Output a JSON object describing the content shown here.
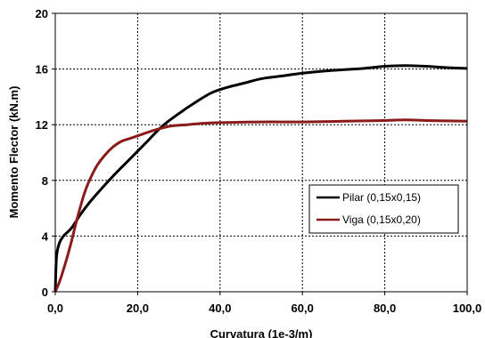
{
  "chart_data": {
    "type": "line",
    "xlabel": "Curvatura (1e-3/m)",
    "ylabel": "Momento Flector (kN.m)",
    "xlim": [
      0,
      100
    ],
    "ylim": [
      0,
      20
    ],
    "x_ticks": [
      "0,0",
      "20,0",
      "40,0",
      "60,0",
      "80,0",
      "100,0"
    ],
    "y_ticks": [
      "0",
      "4",
      "8",
      "12",
      "16",
      "20"
    ],
    "grid": true,
    "legend_position": "lower-right",
    "series": [
      {
        "name": "Pilar (0,15x0,15)",
        "color": "#000000",
        "x": [
          0,
          0.3,
          1,
          2,
          4,
          6,
          8,
          10,
          14,
          18,
          22,
          26,
          30,
          34,
          38,
          42,
          46,
          50,
          55,
          60,
          65,
          70,
          75,
          80,
          85,
          90,
          95,
          100
        ],
        "y": [
          0,
          2.5,
          3.5,
          4.0,
          4.6,
          5.5,
          6.3,
          7.0,
          8.3,
          9.5,
          10.7,
          11.9,
          12.8,
          13.6,
          14.3,
          14.7,
          15.0,
          15.3,
          15.5,
          15.7,
          15.85,
          15.95,
          16.05,
          16.2,
          16.25,
          16.2,
          16.1,
          16.05
        ]
      },
      {
        "name": "Viga (0,15x0,20)",
        "color": "#8b1a1a",
        "x": [
          0,
          1,
          2,
          3,
          4,
          5,
          6,
          7,
          8,
          10,
          12,
          14,
          16,
          18,
          20,
          24,
          28,
          32,
          36,
          40,
          50,
          60,
          70,
          80,
          85,
          90,
          100
        ],
        "y": [
          0,
          0.7,
          1.6,
          2.6,
          3.7,
          4.9,
          6.0,
          7.0,
          7.8,
          9.0,
          9.8,
          10.4,
          10.8,
          11.0,
          11.2,
          11.6,
          11.9,
          12.0,
          12.1,
          12.15,
          12.2,
          12.2,
          12.25,
          12.3,
          12.35,
          12.3,
          12.25
        ]
      }
    ]
  }
}
